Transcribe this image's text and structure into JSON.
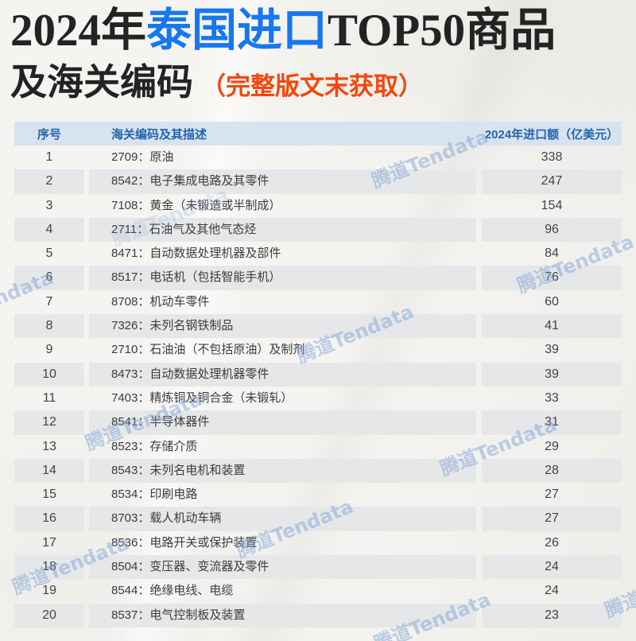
{
  "title": {
    "line1_part1": "2024年",
    "line1_highlight": "泰国进口",
    "line1_part2": "TOP50商品",
    "line2": "及海关编码",
    "line2_note": "（完整版文末获取）"
  },
  "colors": {
    "title_highlight_blue": "#1677f0",
    "note_orange": "#f3470d",
    "header_text_blue": "#2264ac",
    "header_bg": "#d8e3f0",
    "row_alt_bg": "#e6e7e9",
    "watermark_blue": "#7da4d6"
  },
  "table": {
    "headers": [
      "序号",
      "海关编码及其描述",
      "2024年进口额（亿美元）"
    ],
    "rows": [
      {
        "no": "1",
        "desc": "2709：原油",
        "value": "338"
      },
      {
        "no": "2",
        "desc": "8542：电子集成电路及其零件",
        "value": "247"
      },
      {
        "no": "3",
        "desc": "7108：黄金（未锻造或半制成）",
        "value": "154"
      },
      {
        "no": "4",
        "desc": "2711：石油气及其他气态烃",
        "value": "96"
      },
      {
        "no": "5",
        "desc": "8471：自动数据处理机器及部件",
        "value": "84"
      },
      {
        "no": "6",
        "desc": "8517：电话机（包括智能手机）",
        "value": "76"
      },
      {
        "no": "7",
        "desc": "8708：机动车零件",
        "value": "60"
      },
      {
        "no": "8",
        "desc": "7326：未列名钢铁制品",
        "value": "41"
      },
      {
        "no": "9",
        "desc": "2710：石油油（不包括原油）及制剂",
        "value": "39"
      },
      {
        "no": "10",
        "desc": "8473：自动数据处理机器零件",
        "value": "39"
      },
      {
        "no": "11",
        "desc": "7403：精炼铜及铜合金（未锻轧）",
        "value": "33"
      },
      {
        "no": "12",
        "desc": "8541：半导体器件",
        "value": "31"
      },
      {
        "no": "13",
        "desc": "8523：存储介质",
        "value": "29"
      },
      {
        "no": "14",
        "desc": "8543：未列名电机和装置",
        "value": "28"
      },
      {
        "no": "15",
        "desc": "8534：印刷电路",
        "value": "27"
      },
      {
        "no": "16",
        "desc": "8703：载人机动车辆",
        "value": "27"
      },
      {
        "no": "17",
        "desc": "8536：电路开关或保护装置",
        "value": "26"
      },
      {
        "no": "18",
        "desc": "8504：变压器、变流器及零件",
        "value": "24"
      },
      {
        "no": "19",
        "desc": "8544：绝缘电线、电缆",
        "value": "24"
      },
      {
        "no": "20",
        "desc": "8537：电气控制板及装置",
        "value": "23"
      }
    ]
  },
  "watermark": {
    "text": "腾道Tendata"
  }
}
